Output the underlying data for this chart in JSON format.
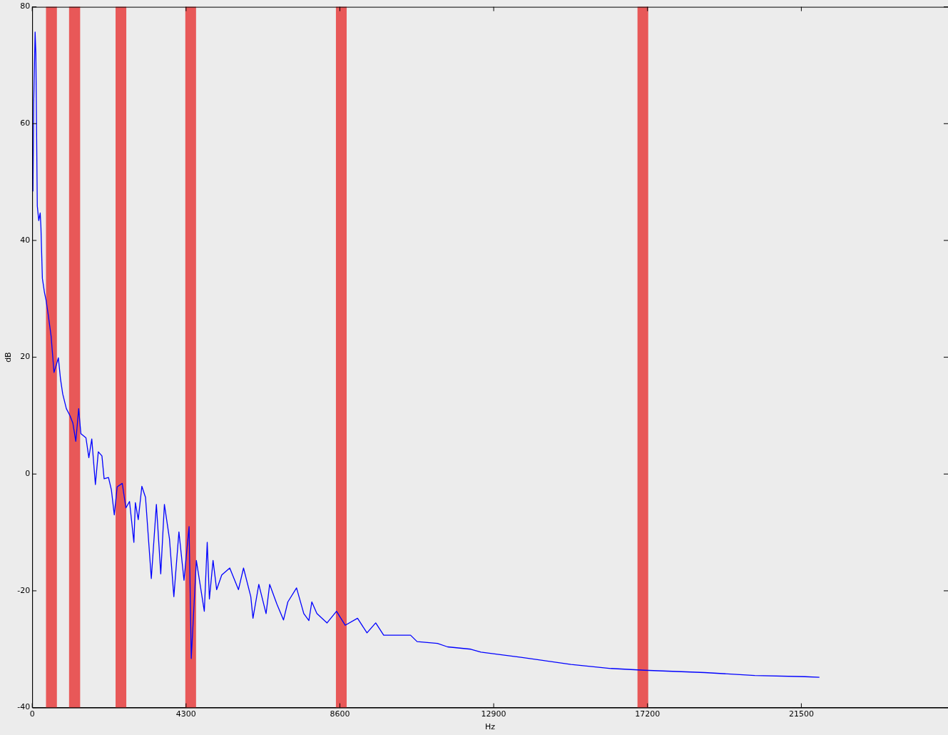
{
  "chart_data": {
    "type": "line",
    "xlabel": "Hz",
    "ylabel": "dB",
    "xlim": [
      0,
      25600
    ],
    "ylim": [
      -40,
      80
    ],
    "xticks": [
      0,
      4300,
      8600,
      12900,
      17200,
      21500
    ],
    "yticks": [
      -40,
      -20,
      0,
      20,
      40,
      60,
      80
    ],
    "grid": false,
    "legend": false,
    "marker": "none",
    "line_style": "solid",
    "series": [
      {
        "color": "#0000ff",
        "x": [
          20,
          41,
          81,
          102,
          142,
          183,
          223,
          244,
          284,
          345,
          386,
          447,
          528,
          609,
          670,
          731,
          792,
          853,
          954,
          1056,
          1137,
          1218,
          1299,
          1360,
          1502,
          1583,
          1665,
          1766,
          1847,
          1949,
          2010,
          2132,
          2213,
          2294,
          2375,
          2517,
          2619,
          2720,
          2842,
          2883,
          2964,
          3065,
          3167,
          3329,
          3471,
          3593,
          3695,
          3837,
          3959,
          4101,
          4243,
          4385,
          4446,
          4588,
          4811,
          4892,
          4953,
          5055,
          5156,
          5298,
          5522,
          5765,
          5907,
          6110,
          6171,
          6334,
          6537,
          6638,
          6841,
          7024,
          7146,
          7389,
          7592,
          7734,
          7816,
          7958,
          8242,
          8506,
          8749,
          9094,
          9358,
          9602,
          9825,
          10576,
          10759,
          11327,
          11612,
          12261,
          12545,
          13662,
          15063,
          16179,
          17113,
          18798,
          20199,
          21599,
          22005
        ],
        "values": [
          48.4,
          63.3,
          75.7,
          71.9,
          45.9,
          43.4,
          44.7,
          42.2,
          33.5,
          31.0,
          29.8,
          27.3,
          23.6,
          17.4,
          18.6,
          19.9,
          16.2,
          13.7,
          11.2,
          10.0,
          8.7,
          5.6,
          11.2,
          6.9,
          6.2,
          2.8,
          6.0,
          -1.8,
          3.8,
          3.1,
          -0.8,
          -0.6,
          -2.7,
          -7.0,
          -2.2,
          -1.6,
          -5.8,
          -4.7,
          -11.7,
          -4.9,
          -7.8,
          -2.1,
          -4.0,
          -17.9,
          -5.2,
          -17.1,
          -5.2,
          -11.1,
          -21.0,
          -9.9,
          -18.2,
          -9.0,
          -31.6,
          -14.8,
          -23.5,
          -11.7,
          -21.4,
          -14.8,
          -19.8,
          -17.3,
          -16.1,
          -19.8,
          -16.1,
          -21.0,
          -24.7,
          -18.9,
          -23.9,
          -18.9,
          -22.3,
          -25.0,
          -21.9,
          -19.5,
          -23.9,
          -25.1,
          -21.9,
          -23.9,
          -25.5,
          -23.5,
          -25.9,
          -24.7,
          -27.2,
          -25.5,
          -27.6,
          -27.6,
          -28.7,
          -29.0,
          -29.6,
          -30.0,
          -30.5,
          -31.4,
          -32.6,
          -33.3,
          -33.6,
          -34.0,
          -34.5,
          -34.7,
          -34.8
        ]
      }
    ],
    "bands": [
      {
        "axis": "x",
        "from": 385,
        "to": 690,
        "color": "#e84848"
      },
      {
        "axis": "x",
        "from": 1030,
        "to": 1340,
        "color": "#e84848"
      },
      {
        "axis": "x",
        "from": 2330,
        "to": 2630,
        "color": "#e84848"
      },
      {
        "axis": "x",
        "from": 4280,
        "to": 4580,
        "color": "#e84848"
      },
      {
        "axis": "x",
        "from": 8490,
        "to": 8790,
        "color": "#e84848"
      },
      {
        "axis": "x",
        "from": 16920,
        "to": 17220,
        "color": "#e84848"
      }
    ]
  }
}
